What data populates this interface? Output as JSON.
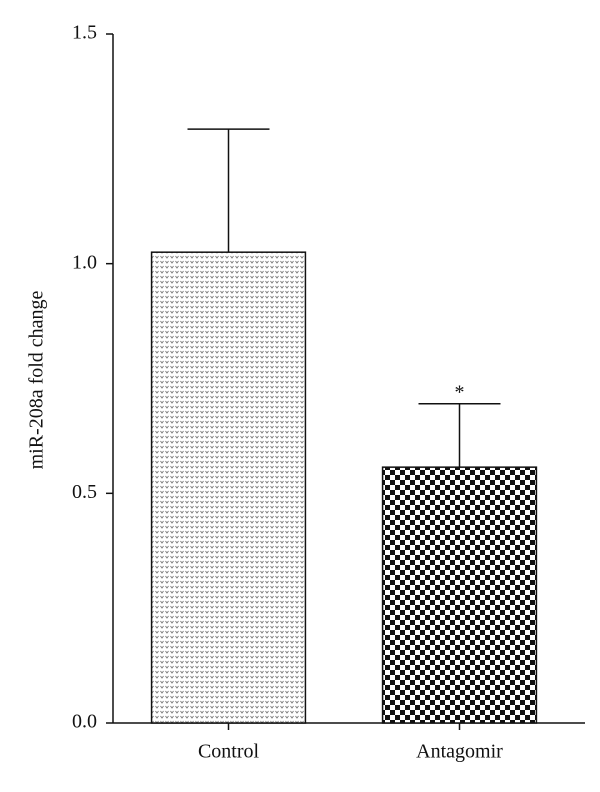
{
  "chart_data": {
    "type": "bar",
    "y_label": "miR-208a fold change",
    "categories": [
      "Control",
      "Antagomir"
    ],
    "values": [
      1.025,
      0.557
    ],
    "errors": [
      0.268,
      0.138
    ],
    "significance": [
      null,
      "*"
    ],
    "fills": [
      "dots",
      "checker"
    ],
    "ylim": [
      0,
      1.5
    ],
    "yticks": [
      {
        "value": 0,
        "label": "0.0"
      },
      {
        "value": 0.5,
        "label": "0.5"
      },
      {
        "value": 1,
        "label": "1.0"
      },
      {
        "value": 1.5,
        "label": "1.5"
      }
    ]
  }
}
